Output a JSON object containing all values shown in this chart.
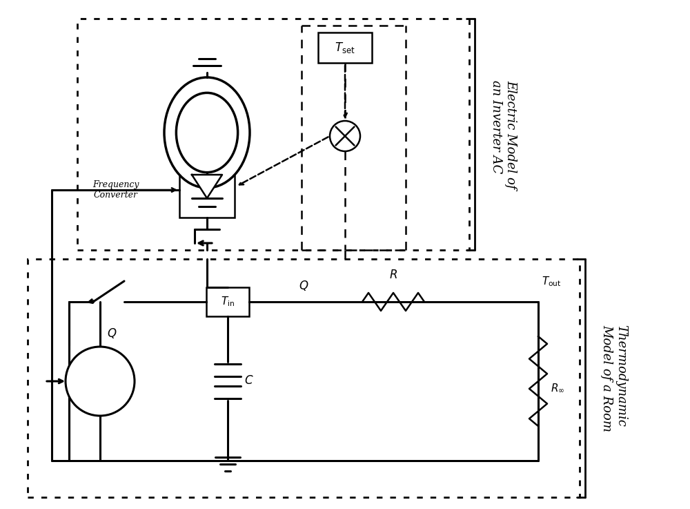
{
  "fig_width": 10.0,
  "fig_height": 7.37,
  "bg_color": "#ffffff",
  "line_color": "#000000",
  "label_Electric_Model": "Electric Model of\nan Inverter AC",
  "label_Thermo_Model": "Thermodynamic\nModel of a Room",
  "label_Tset": "$T_{\\mathrm{set}}$",
  "label_Tin": "$T_{\\mathrm{in}}$",
  "label_Tout": "$T_{\\mathrm{out}}$",
  "label_Q_source": "$Q$",
  "label_Q_wire": "$Q$",
  "label_R": "$R$",
  "label_C": "$C$",
  "label_Rinf": "$R_{\\infty}$",
  "label_FreqConv": "Frequency\nConverter"
}
